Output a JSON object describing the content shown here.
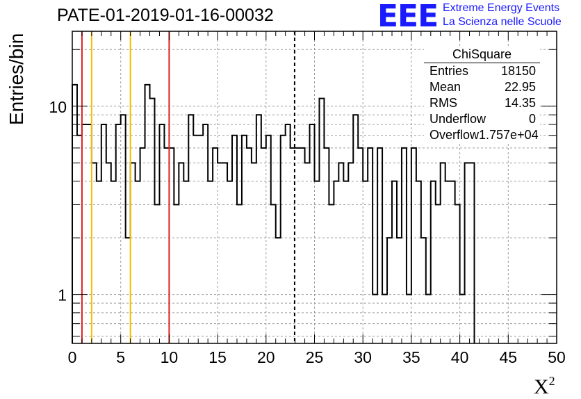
{
  "title": "PATE-01-2019-01-16-00032",
  "logo": {
    "text": "EEE",
    "line1": "Extreme Energy Events",
    "line2": "La Scienza nelle Scuole",
    "color": "#1a1aff"
  },
  "stats": {
    "title": "ChiSquare",
    "rows": [
      {
        "label": "Entries",
        "value": "18150"
      },
      {
        "label": "Mean",
        "value": "22.95"
      },
      {
        "label": "RMS",
        "value": "14.35"
      },
      {
        "label": "Underflow",
        "value": "0"
      },
      {
        "label": "Overflow",
        "value": "1.757e+04"
      }
    ]
  },
  "chart_data": {
    "type": "histogram",
    "ylabel": "Entries/bin",
    "xlabel": "X",
    "xlabel_sup": "2",
    "x_range": [
      0,
      50
    ],
    "y_range": [
      0.55,
      25
    ],
    "y_scale": "log",
    "grid": true,
    "bin_width": 0.5,
    "x_ticks": [
      "0",
      "5",
      "10",
      "15",
      "20",
      "25",
      "30",
      "35",
      "40",
      "45",
      "50"
    ],
    "y_ticks": [
      {
        "value": 1,
        "label": "1"
      },
      {
        "value": 10,
        "label": "10"
      }
    ],
    "values": [
      13,
      7,
      8,
      8,
      5,
      4,
      8,
      5,
      4,
      8,
      9,
      2,
      5,
      4,
      6,
      13,
      11,
      3,
      8,
      6,
      6,
      3,
      5,
      4,
      9,
      7,
      7,
      8,
      4,
      6,
      5,
      5,
      4,
      7,
      3,
      7,
      6,
      5,
      9,
      6,
      7,
      3,
      2,
      7,
      8,
      6,
      6,
      6,
      5,
      8,
      4,
      11,
      6,
      3,
      4,
      5,
      4,
      5,
      9,
      6,
      4,
      6,
      1,
      6,
      1,
      2,
      4,
      2,
      6,
      1,
      6,
      4,
      2,
      1,
      4,
      3,
      5,
      4,
      4,
      3,
      1,
      5,
      5
    ],
    "vertical_lines": [
      {
        "x": 1,
        "color": "#e02020",
        "style": "solid"
      },
      {
        "x": 2,
        "color": "#f0c000",
        "style": "solid"
      },
      {
        "x": 6,
        "color": "#f0c000",
        "style": "solid"
      },
      {
        "x": 10,
        "color": "#e02020",
        "style": "solid"
      },
      {
        "x": 22.95,
        "color": "#000000",
        "style": "dashed"
      }
    ]
  }
}
